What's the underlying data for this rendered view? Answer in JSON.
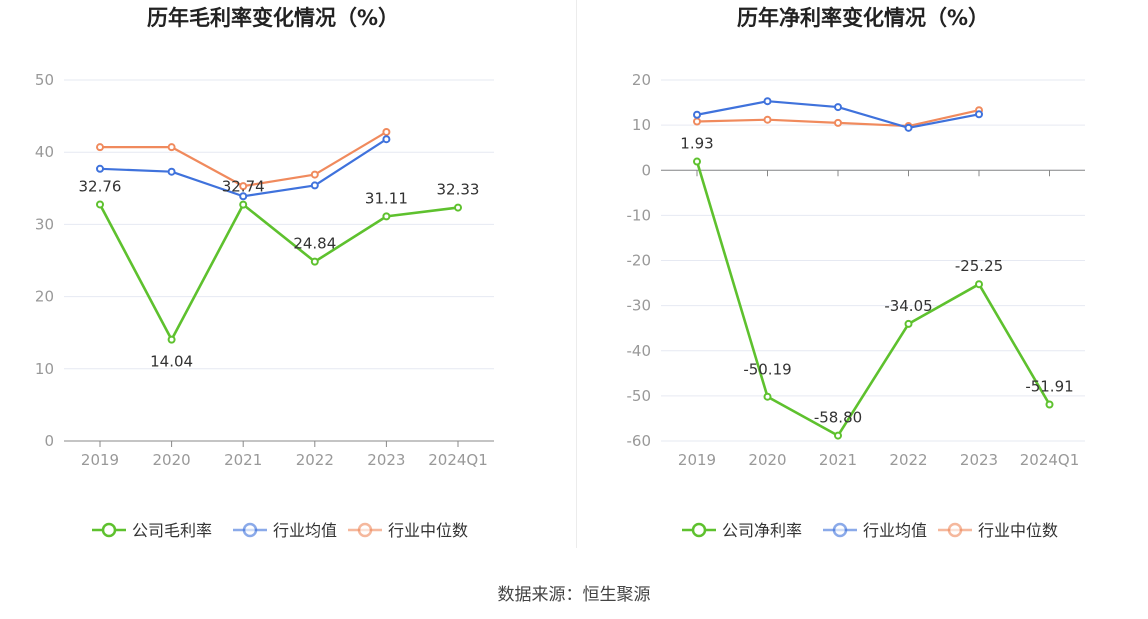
{
  "source_text": "数据来源：恒生聚源",
  "colors": {
    "company": "#5ec12e",
    "industry_avg": "#3f72dc",
    "industry_median": "#f08a5d",
    "axis": "#888888",
    "grid": "#e6e9f2",
    "tick_text": "#999999",
    "label_text": "#333333"
  },
  "chart_data": [
    {
      "type": "line",
      "title": "历年毛利率变化情况（%）",
      "categories": [
        "2019",
        "2020",
        "2021",
        "2022",
        "2023",
        "2024Q1"
      ],
      "ylim": [
        0,
        50
      ],
      "yticks": [
        0,
        10,
        20,
        30,
        40,
        50
      ],
      "legend_position": "bottom",
      "series": [
        {
          "name": "公司毛利率",
          "key": "company",
          "values": [
            32.76,
            14.04,
            32.74,
            24.84,
            31.11,
            32.33
          ],
          "labels": [
            "32.76",
            "14.04",
            "32.74",
            "24.84",
            "31.11",
            "32.33"
          ]
        },
        {
          "name": "行业均值",
          "key": "industry_avg",
          "values": [
            37.7,
            37.3,
            33.9,
            35.4,
            41.8,
            null
          ]
        },
        {
          "name": "行业中位数",
          "key": "industry_median",
          "values": [
            40.7,
            40.7,
            35.3,
            36.9,
            42.8,
            null
          ]
        }
      ]
    },
    {
      "type": "line",
      "title": "历年净利率变化情况（%）",
      "categories": [
        "2019",
        "2020",
        "2021",
        "2022",
        "2023",
        "2024Q1"
      ],
      "ylim": [
        -60,
        20
      ],
      "yticks": [
        -60,
        -50,
        -40,
        -30,
        -20,
        -10,
        0,
        10,
        20
      ],
      "legend_position": "bottom",
      "series": [
        {
          "name": "公司净利率",
          "key": "company",
          "values": [
            1.93,
            -50.19,
            -58.8,
            -34.05,
            -25.25,
            -51.91
          ],
          "labels": [
            "1.93",
            "-50.19",
            "-58.80",
            "-34.05",
            "-25.25",
            "-51.91"
          ]
        },
        {
          "name": "行业均值",
          "key": "industry_avg",
          "values": [
            12.3,
            15.3,
            14.0,
            9.4,
            12.4,
            null
          ]
        },
        {
          "name": "行业中位数",
          "key": "industry_median",
          "values": [
            10.8,
            11.2,
            10.5,
            9.8,
            13.3,
            null
          ]
        }
      ]
    }
  ]
}
